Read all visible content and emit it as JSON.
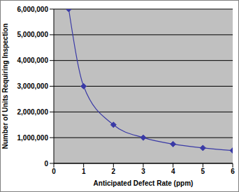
{
  "chart_data": {
    "type": "line",
    "x_label": "Anticipated Defect Rate (ppm)",
    "y_label": "Number of Units Requiring Inspection",
    "x": [
      0.5,
      1,
      2,
      3,
      4,
      5,
      6
    ],
    "values": [
      6000000,
      3000000,
      1500000,
      1000000,
      750000,
      600000,
      500000
    ],
    "color": "#3a3aa6",
    "marker": "diamond",
    "xlim": [
      0,
      6
    ],
    "xticks": [
      0,
      1,
      2,
      3,
      4,
      5,
      6
    ],
    "ylim": [
      0,
      6000000
    ],
    "yticks": [
      0,
      {
        "value": 1000000,
        "label": "1,000,000"
      },
      {
        "value": 2000000,
        "label": "2,000,000"
      },
      {
        "value": 3000000,
        "label": "3,000,000"
      },
      {
        "value": 4000000,
        "label": "4,000,000"
      },
      {
        "value": 5000000,
        "label": "5,000,000"
      },
      {
        "value": 6000000,
        "label": "6,000,000"
      }
    ],
    "grid": true
  }
}
